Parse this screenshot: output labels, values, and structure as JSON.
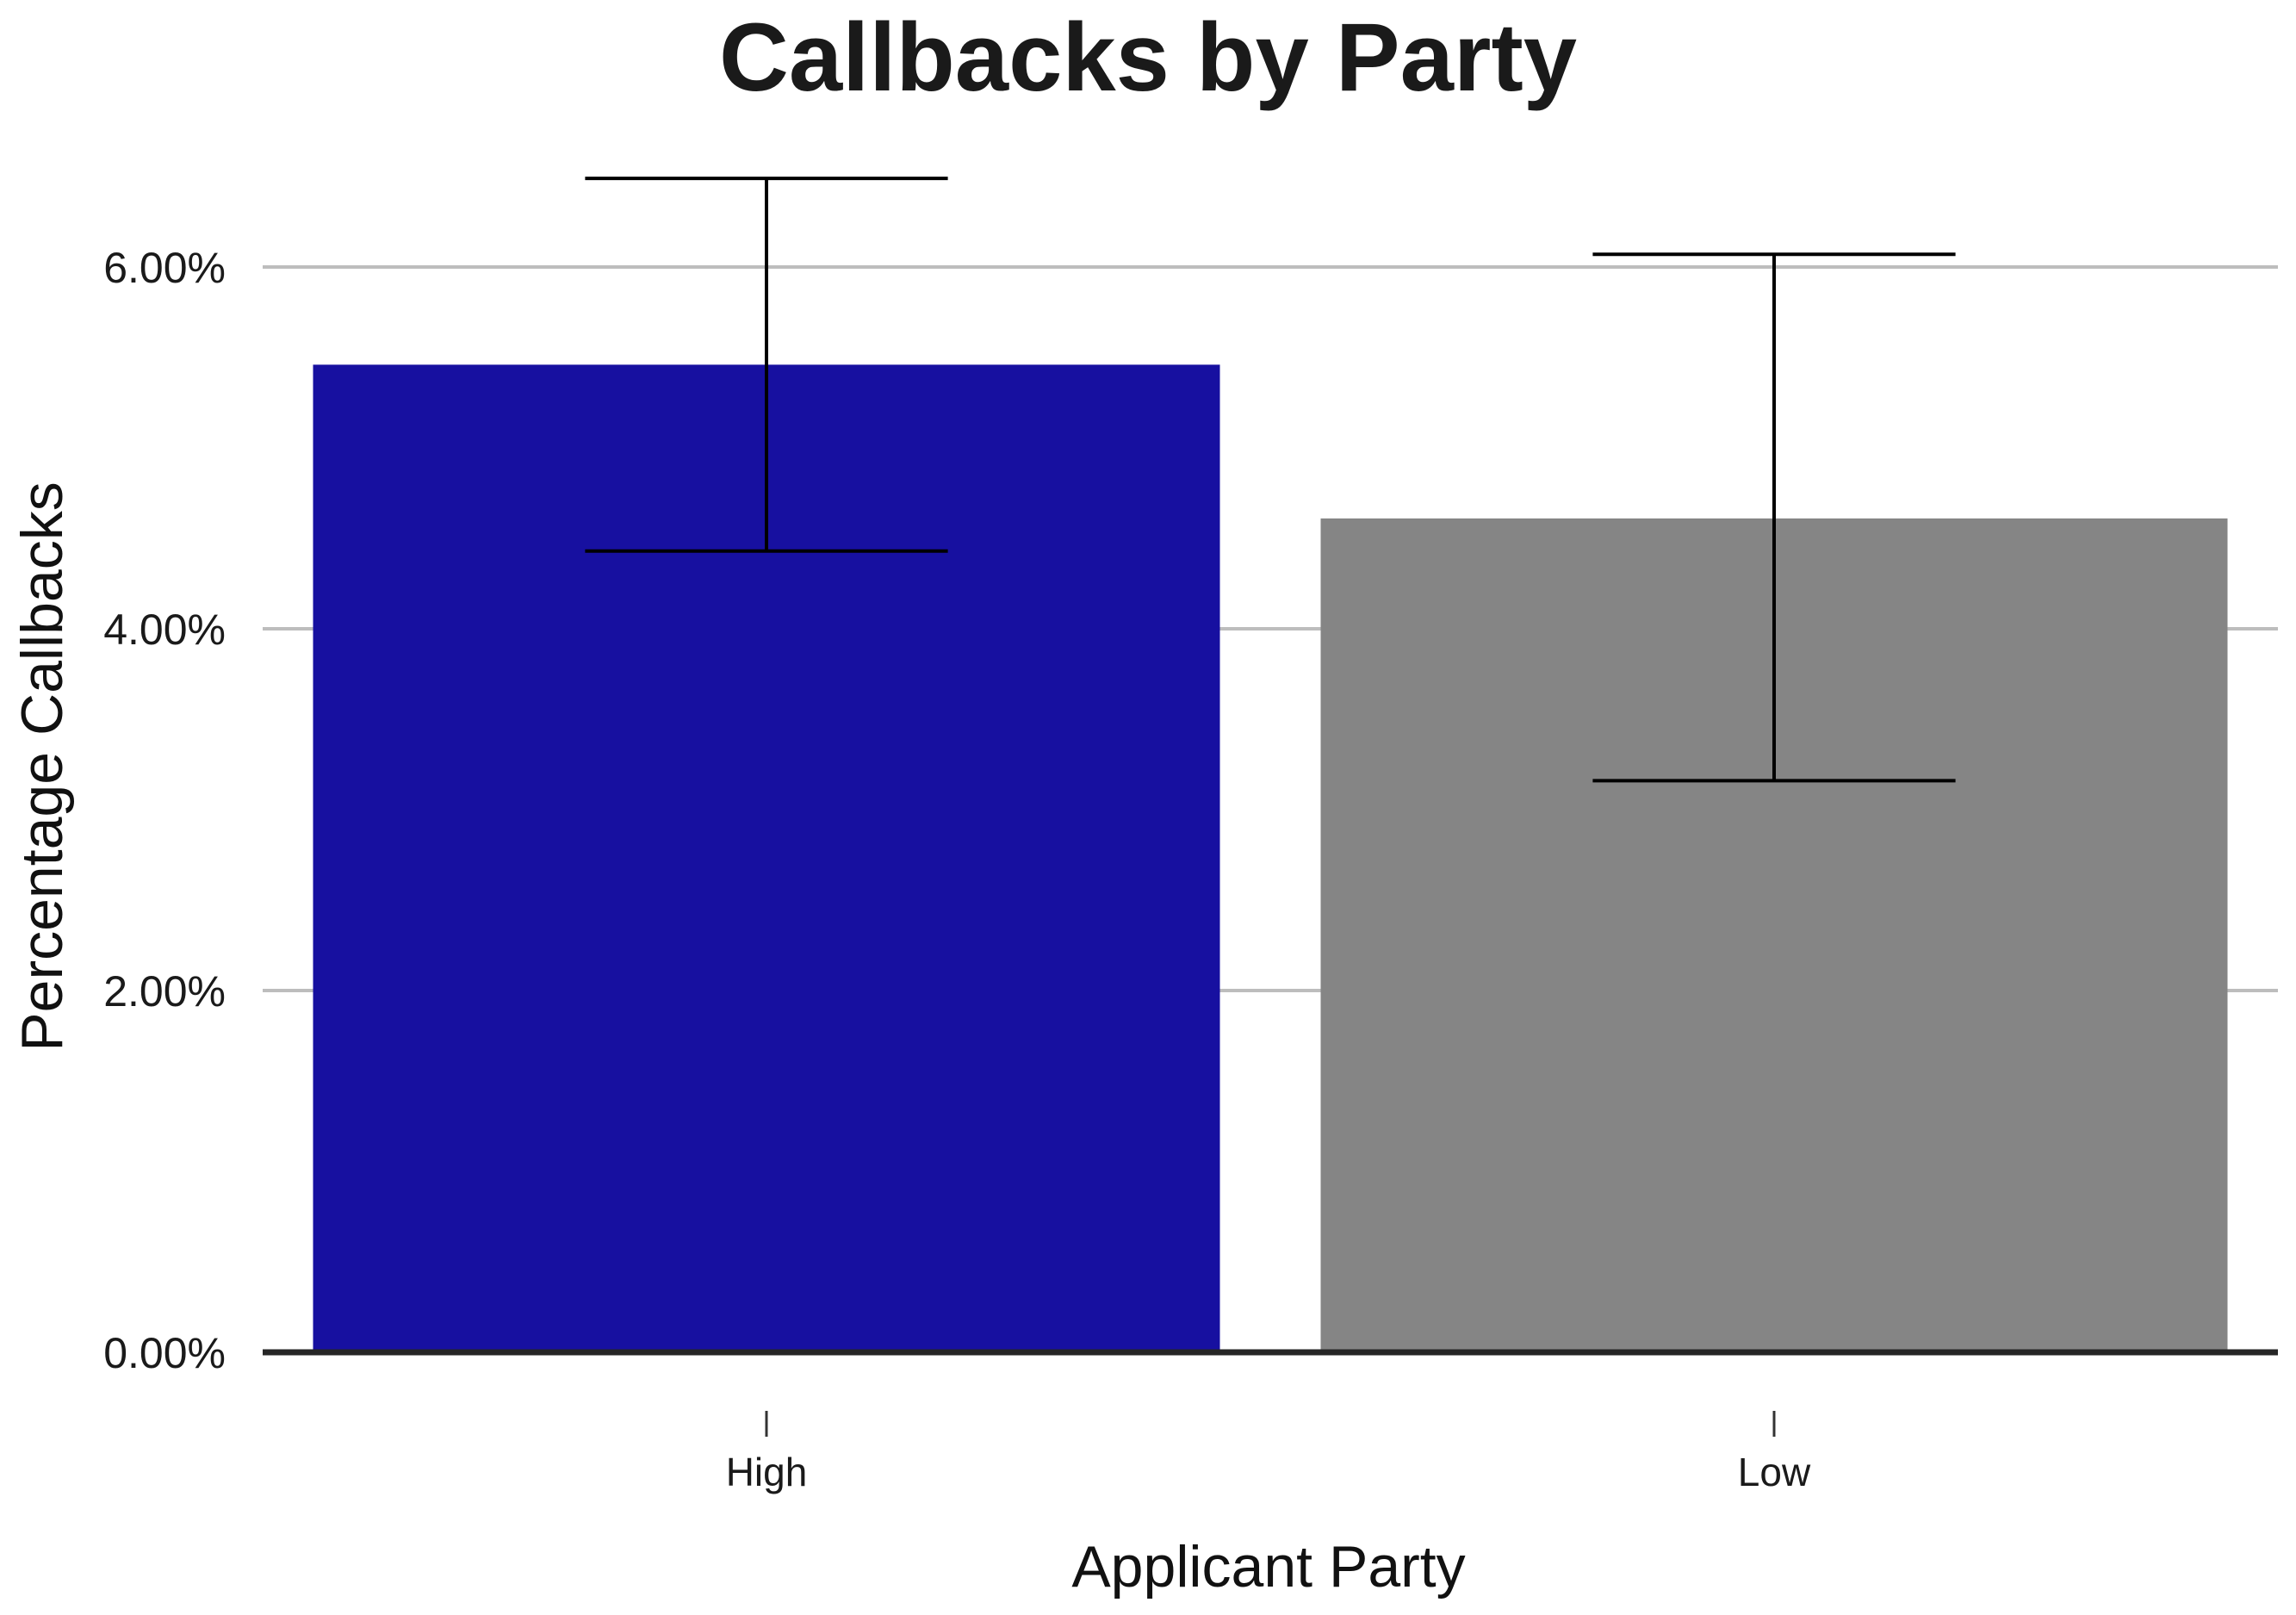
{
  "chart_data": {
    "type": "bar",
    "title": "Callbacks by Party",
    "xlabel": "Applicant Party",
    "ylabel": "Percentage Callbacks",
    "categories": [
      "High",
      "Low"
    ],
    "values": [
      5.46,
      4.61
    ],
    "error_low": [
      4.43,
      3.16
    ],
    "error_high": [
      6.49,
      6.07
    ],
    "colors": [
      "#1710a0",
      "#858585"
    ],
    "ylim": [
      0,
      6.5
    ],
    "yticks": [
      0,
      2,
      4,
      6
    ],
    "ytick_labels": [
      "0.00%",
      "2.00%",
      "4.00%",
      "6.00%"
    ],
    "grid": true,
    "legend": "none"
  }
}
